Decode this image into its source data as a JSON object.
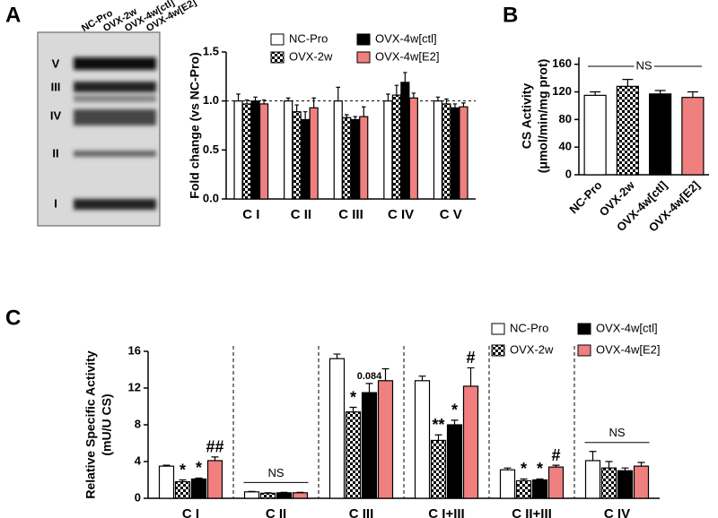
{
  "panels": [
    "A",
    "B",
    "C"
  ],
  "blot": {
    "lanes": [
      "NC-Pro",
      "OVX-2w",
      "OVX-4w[ctl]",
      "OVX-4w[E2]"
    ],
    "bands": [
      "V",
      "III",
      "IV",
      "II",
      "I"
    ]
  },
  "chart_data": [
    {
      "type": "bar",
      "ylabel": "Fold change (vs NC-Pro)",
      "categories": [
        "C I",
        "C II",
        "C III",
        "C IV",
        "C V"
      ],
      "series": [
        {
          "name": "NC-Pro",
          "color": "#ffffff",
          "values": [
            1.0,
            1.0,
            1.0,
            1.0,
            1.0
          ],
          "errors": [
            0.07,
            0.03,
            0.14,
            0.07,
            0.04
          ]
        },
        {
          "name": "OVX-2w",
          "color": "checkered",
          "values": [
            0.97,
            0.89,
            0.83,
            1.06,
            0.97
          ],
          "errors": [
            0.04,
            0.07,
            0.03,
            0.1,
            0.05
          ]
        },
        {
          "name": "OVX-4w[ctl]",
          "color": "#000000",
          "values": [
            1.0,
            0.81,
            0.81,
            1.19,
            0.93
          ],
          "errors": [
            0.04,
            0.08,
            0.03,
            0.1,
            0.04
          ]
        },
        {
          "name": "OVX-4w[E2]",
          "color": "#f08080",
          "values": [
            0.97,
            0.93,
            0.84,
            1.03,
            0.94
          ],
          "errors": [
            0.04,
            0.1,
            0.1,
            0.05,
            0.04
          ]
        }
      ],
      "ylim": [
        0,
        1.5
      ],
      "yticks": [
        {
          "value": 0,
          "label": "0.0"
        },
        {
          "value": 0.5,
          "label": "0.5"
        },
        {
          "value": 1,
          "label": "1.0"
        },
        {
          "value": 1.5,
          "label": "1.5"
        }
      ],
      "reference_line": 1
    },
    {
      "type": "bar",
      "ylabel": [
        "CS Activity",
        "(μmol/min/mg prot)"
      ],
      "categories": [
        "NC-Pro",
        "OVX-2w",
        "OVX-4w[ctl]",
        "OVX-4w[E2]"
      ],
      "values": [
        115,
        128,
        117,
        112
      ],
      "errors": [
        5,
        10,
        5,
        8
      ],
      "colors": [
        "#ffffff",
        "checkered",
        "#000000",
        "#f08080"
      ],
      "ylim": [
        0,
        170
      ],
      "yticks": [
        0,
        40,
        80,
        120,
        160
      ],
      "annotation": "NS"
    },
    {
      "type": "bar",
      "ylabel": [
        "Relative Specific Activity",
        "(mU/U CS)"
      ],
      "categories": [
        "C I",
        "C II",
        "C III",
        "C I+III",
        "C II+III",
        "C IV"
      ],
      "series": [
        {
          "name": "NC-Pro",
          "color": "#ffffff",
          "values": [
            3.5,
            0.7,
            15.2,
            12.8,
            3.1,
            4.1
          ],
          "errors": [
            0.1,
            0.05,
            0.5,
            0.5,
            0.2,
            1.0
          ],
          "significance": [
            null,
            null,
            null,
            null,
            null,
            null
          ]
        },
        {
          "name": "OVX-2w",
          "color": "checkered",
          "values": [
            1.8,
            0.55,
            9.4,
            6.3,
            1.9,
            3.3
          ],
          "errors": [
            0.2,
            0.05,
            0.5,
            0.6,
            0.2,
            0.7
          ],
          "significance": [
            "*",
            null,
            "*",
            "**",
            "*",
            null
          ]
        },
        {
          "name": "OVX-4w[ctl]",
          "color": "#000000",
          "values": [
            2.1,
            0.6,
            11.5,
            8.0,
            2.0,
            3.0
          ],
          "errors": [
            0.1,
            0.05,
            1.0,
            0.5,
            0.1,
            0.3
          ],
          "significance": [
            "*",
            null,
            "0.084",
            "*",
            "*",
            null
          ]
        },
        {
          "name": "OVX-4w[E2]",
          "color": "#f08080",
          "values": [
            4.1,
            0.6,
            12.8,
            12.2,
            3.4,
            3.5
          ],
          "errors": [
            0.4,
            0.05,
            1.3,
            2.0,
            0.2,
            0.4
          ],
          "significance": [
            "##",
            null,
            null,
            "#",
            "#",
            null
          ]
        }
      ],
      "group_labels": [
        null,
        "NS",
        null,
        null,
        null,
        "NS"
      ],
      "ylim": [
        0,
        16
      ],
      "yticks": [
        0,
        4,
        8,
        12,
        16
      ]
    }
  ]
}
